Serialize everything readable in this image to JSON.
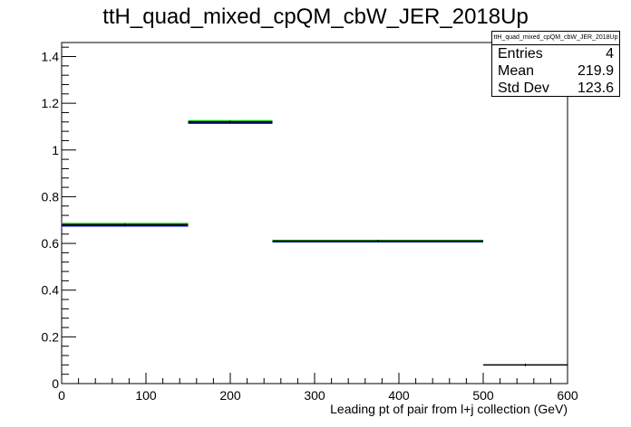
{
  "chart_data": {
    "type": "histogram-step",
    "title": "ttH_quad_mixed_cpQM_cbW_JER_2018Up",
    "xlabel": "Leading pt of pair from l+j collection (GeV)",
    "ylabel": "",
    "xlim": [
      0,
      600
    ],
    "ylim": [
      0,
      1.46
    ],
    "x_ticks": [
      0,
      100,
      200,
      300,
      400,
      500,
      600
    ],
    "y_ticks": [
      0,
      0.2,
      0.4,
      0.6,
      0.8,
      1,
      1.2,
      1.4
    ],
    "bins": [
      {
        "x0": 0,
        "x1": 150,
        "value": 0.68
      },
      {
        "x0": 150,
        "x1": 250,
        "value": 1.12
      },
      {
        "x0": 250,
        "x1": 500,
        "value": 0.61
      },
      {
        "x0": 500,
        "x1": 600,
        "value": 0.08
      }
    ],
    "error_band": [
      {
        "x0": 0,
        "x1": 150,
        "low": 0.675,
        "high": 0.685
      },
      {
        "x0": 150,
        "x1": 250,
        "low": 1.115,
        "high": 1.125
      },
      {
        "x0": 250,
        "x1": 500,
        "low": 0.607,
        "high": 0.613
      }
    ],
    "colors": {
      "hist": "#000000",
      "band_low": "#0000cc",
      "band_high": "#00cc00"
    },
    "stats": {
      "name": "ttH_quad_mixed_cpQM_cbW_JER_2018Up",
      "entries_label": "Entries",
      "entries": "4",
      "mean_label": "Mean",
      "mean": "219.9",
      "stddev_label": "Std Dev",
      "stddev": "123.6"
    }
  }
}
